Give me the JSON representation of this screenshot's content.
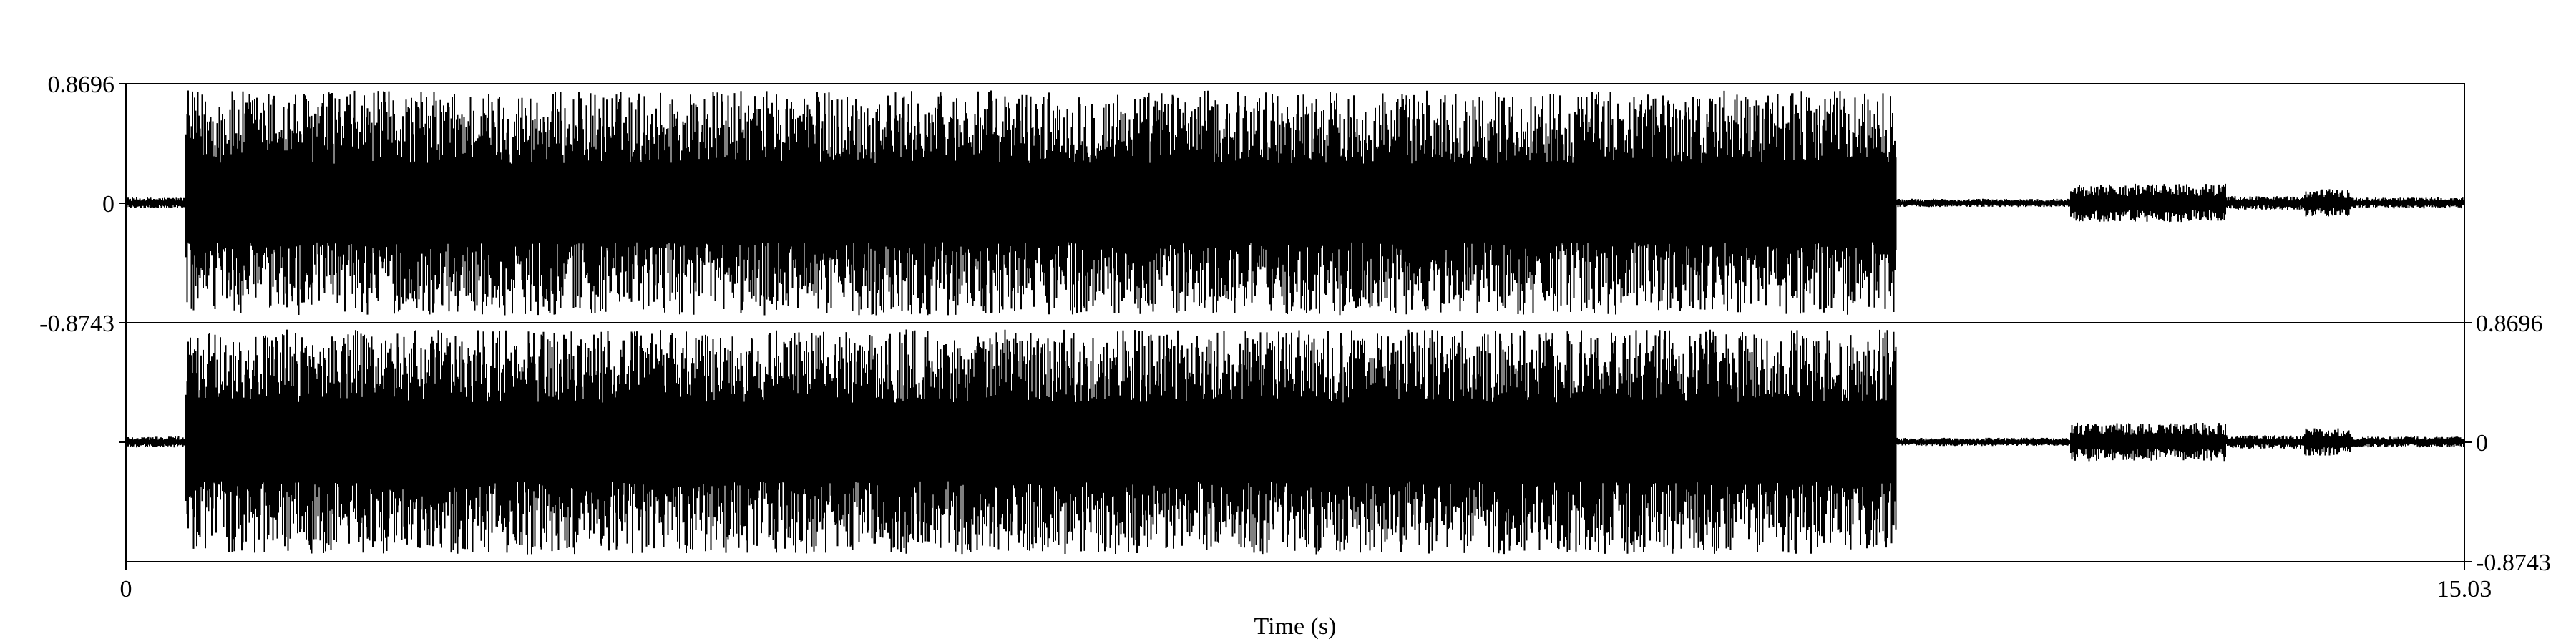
{
  "chart_data": {
    "type": "waveform",
    "channels": 2,
    "xlabel": "Time (s)",
    "x_range": [
      0,
      15.03
    ],
    "x_tick_labels": [
      "0",
      "15.03"
    ],
    "y_range": [
      -0.8743,
      0.8696
    ],
    "y_tick_labels": {
      "max": "0.8696",
      "zero": "0",
      "min": "-0.8743"
    },
    "colors": {
      "waveform": "#000000",
      "background": "#ffffff",
      "frame": "#000000"
    },
    "envelope": {
      "description_units": "seconds / amplitude",
      "segments": [
        {
          "t_start": 0.0,
          "t_end": 0.38,
          "amplitude": 0.04
        },
        {
          "t_start": 0.38,
          "t_end": 11.38,
          "amplitude": 0.82
        },
        {
          "t_start": 11.38,
          "t_end": 12.5,
          "amplitude": 0.03
        },
        {
          "t_start": 12.5,
          "t_end": 13.5,
          "amplitude": 0.14
        },
        {
          "t_start": 13.5,
          "t_end": 14.0,
          "amplitude": 0.05
        },
        {
          "t_start": 14.0,
          "t_end": 14.3,
          "amplitude": 0.1
        },
        {
          "t_start": 14.3,
          "t_end": 15.03,
          "amplitude": 0.04
        }
      ]
    }
  }
}
